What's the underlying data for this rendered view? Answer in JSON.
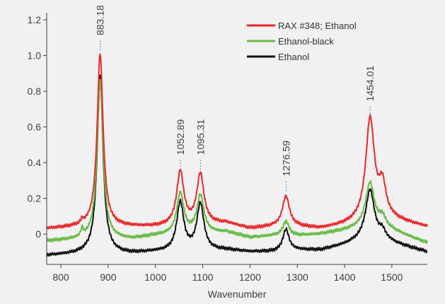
{
  "chart_data": {
    "type": "line",
    "title": "",
    "xlabel": "Wavenumber",
    "ylabel": "",
    "xlim": [
      770,
      1575
    ],
    "ylim": [
      -0.17,
      1.24
    ],
    "xticks": [
      800,
      900,
      1000,
      1100,
      1200,
      1300,
      1400,
      1500
    ],
    "yticks": [
      0,
      0.2,
      0.4,
      0.6,
      0.8,
      1.0,
      1.2
    ],
    "ytick_labels": [
      "0",
      "0.2",
      "0.4",
      "0.6",
      "0.8",
      "1.0",
      "1.2"
    ],
    "grid": false,
    "legend_position": "top-right",
    "series": [
      {
        "name": "RAX #348; Ethanol",
        "color": "#e8292a",
        "baseline": [
          [
            770,
            0.03
          ],
          [
            850,
            0.04
          ],
          [
            950,
            0.04
          ],
          [
            1000,
            0.04
          ],
          [
            1150,
            0.06
          ],
          [
            1200,
            0.03
          ],
          [
            1250,
            0.04
          ],
          [
            1300,
            0.04
          ],
          [
            1350,
            0.03
          ],
          [
            1400,
            0.05
          ],
          [
            1440,
            0.07
          ],
          [
            1500,
            0.08
          ],
          [
            1575,
            0.04
          ]
        ],
        "peaks": [
          {
            "x": 883,
            "h": 0.97,
            "w": 7.5
          },
          {
            "x": 1052.5,
            "h": 0.3,
            "w": 9
          },
          {
            "x": 1095,
            "h": 0.28,
            "w": 9
          },
          {
            "x": 1276,
            "h": 0.17,
            "w": 9
          },
          {
            "x": 1454,
            "h": 0.57,
            "w": 11
          },
          {
            "x": 1480,
            "h": 0.18,
            "w": 9
          },
          {
            "x": 845,
            "h": 0.02,
            "w": 3
          }
        ]
      },
      {
        "name": "Ethanol-black",
        "color": "#66bb44",
        "baseline": [
          [
            770,
            -0.04
          ],
          [
            850,
            -0.03
          ],
          [
            950,
            -0.03
          ],
          [
            1000,
            -0.01
          ],
          [
            1150,
            0.01
          ],
          [
            1200,
            -0.02
          ],
          [
            1250,
            -0.01
          ],
          [
            1300,
            -0.01
          ],
          [
            1350,
            0.0
          ],
          [
            1400,
            0.02
          ],
          [
            1440,
            0.04
          ],
          [
            1500,
            0.02
          ],
          [
            1575,
            -0.05
          ]
        ],
        "peaks": [
          {
            "x": 883,
            "h": 0.89,
            "w": 7.5
          },
          {
            "x": 1052.5,
            "h": 0.23,
            "w": 9
          },
          {
            "x": 1095,
            "h": 0.21,
            "w": 9
          },
          {
            "x": 1276,
            "h": 0.08,
            "w": 8
          },
          {
            "x": 1454,
            "h": 0.25,
            "w": 11
          },
          {
            "x": 1480,
            "h": 0.06,
            "w": 9
          },
          {
            "x": 845,
            "h": 0.04,
            "w": 3
          }
        ]
      },
      {
        "name": "Ethanol",
        "color": "#111111",
        "baseline": [
          [
            770,
            -0.12
          ],
          [
            850,
            -0.11
          ],
          [
            950,
            -0.11
          ],
          [
            1000,
            -0.1
          ],
          [
            1150,
            -0.09
          ],
          [
            1200,
            -0.1
          ],
          [
            1250,
            -0.1
          ],
          [
            1300,
            -0.09
          ],
          [
            1350,
            -0.09
          ],
          [
            1400,
            -0.06
          ],
          [
            1440,
            -0.03
          ],
          [
            1500,
            -0.05
          ],
          [
            1575,
            -0.1
          ]
        ],
        "peaks": [
          {
            "x": 883,
            "h": 0.99,
            "w": 7.5
          },
          {
            "x": 1052.5,
            "h": 0.27,
            "w": 9
          },
          {
            "x": 1095,
            "h": 0.26,
            "w": 9
          },
          {
            "x": 1276,
            "h": 0.12,
            "w": 8
          },
          {
            "x": 1454,
            "h": 0.28,
            "w": 11
          },
          {
            "x": 1480,
            "h": 0.05,
            "w": 9
          }
        ]
      }
    ],
    "annotations": [
      {
        "label": "883.18",
        "x": 883.18,
        "y": 1.03
      },
      {
        "label": "1052.89",
        "x": 1052.89,
        "y": 0.36
      },
      {
        "label": "1095.31",
        "x": 1095.31,
        "y": 0.36
      },
      {
        "label": "1276.59",
        "x": 1276.59,
        "y": 0.24
      },
      {
        "label": "1454.01",
        "x": 1454.01,
        "y": 0.66
      }
    ]
  }
}
